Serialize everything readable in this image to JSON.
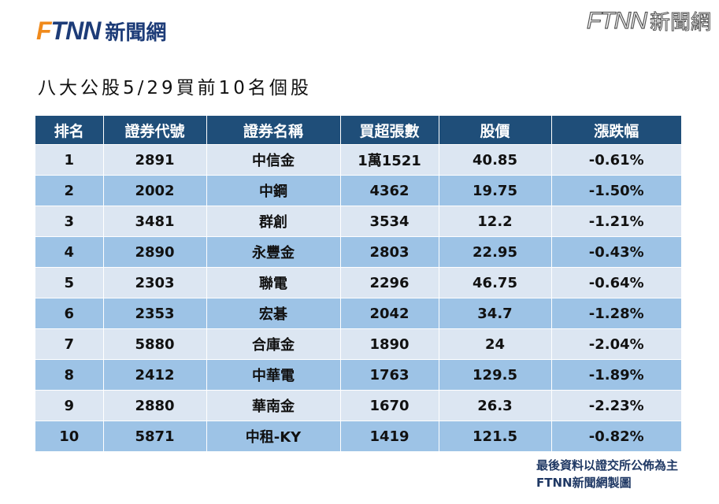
{
  "logo_left": {
    "brand_f": "F",
    "brand_rest": "TNN",
    "cn": "新聞網"
  },
  "logo_right": {
    "brand": "FTNN",
    "cn": "新聞網"
  },
  "title": "八大公股5/29買前10名個股",
  "table": {
    "headers": [
      "排名",
      "證券代號",
      "證券名稱",
      "買超張數",
      "股價",
      "漲跌幅"
    ],
    "rows": [
      [
        "1",
        "2891",
        "中信金",
        "1萬1521",
        "40.85",
        "-0.61%"
      ],
      [
        "2",
        "2002",
        "中鋼",
        "4362",
        "19.75",
        "-1.50%"
      ],
      [
        "3",
        "3481",
        "群創",
        "3534",
        "12.2",
        "-1.21%"
      ],
      [
        "4",
        "2890",
        "永豐金",
        "2803",
        "22.95",
        "-0.43%"
      ],
      [
        "5",
        "2303",
        "聯電",
        "2296",
        "46.75",
        "-0.64%"
      ],
      [
        "6",
        "2353",
        "宏碁",
        "2042",
        "34.7",
        "-1.28%"
      ],
      [
        "7",
        "5880",
        "合庫金",
        "1890",
        "24",
        "-2.04%"
      ],
      [
        "8",
        "2412",
        "中華電",
        "1763",
        "129.5",
        "-1.89%"
      ],
      [
        "9",
        "2880",
        "華南金",
        "1670",
        "26.3",
        "-2.23%"
      ],
      [
        "10",
        "5871",
        "中租-KY",
        "1419",
        "121.5",
        "-0.82%"
      ]
    ]
  },
  "footer": {
    "line1": "最後資料以證交所公佈為主",
    "line2": "FTNN新聞網製圖"
  },
  "colors": {
    "header_bg": "#1f4e79",
    "row_light": "#dce6f2",
    "row_dark": "#9dc3e6",
    "brand_orange": "#f08a1c",
    "brand_blue": "#1d3c78"
  }
}
